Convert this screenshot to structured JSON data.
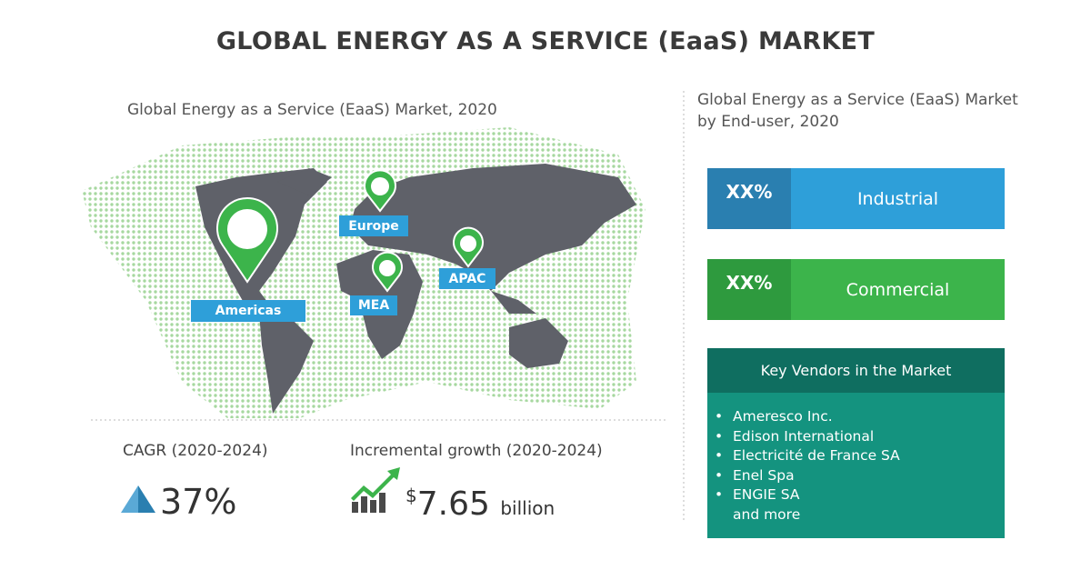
{
  "title": "GLOBAL ENERGY AS A SERVICE (EaaS) MARKET",
  "map": {
    "subtitle": "Global Energy as a Service (EaaS)  Market, 2020",
    "regions": [
      "Americas",
      "Europe",
      "MEA",
      "APAC"
    ]
  },
  "cagr": {
    "label": "CAGR (2020-2024)",
    "value": "37%"
  },
  "incremental_growth": {
    "label": "Incremental growth (2020-2024)",
    "currency": "$",
    "value": "7.65",
    "unit": "billion"
  },
  "end_user": {
    "subtitle": "Global Energy as a Service (EaaS) Market by End-user, 2020",
    "segments": [
      {
        "share": "XX%",
        "name": "Industrial"
      },
      {
        "share": "XX%",
        "name": "Commercial"
      }
    ]
  },
  "vendors": {
    "title": "Key Vendors in the Market",
    "items": [
      "Ameresco Inc.",
      "Edison International",
      "Electricité de France SA",
      "Enel Spa",
      "ENGIE SA"
    ],
    "more": "and more"
  }
}
